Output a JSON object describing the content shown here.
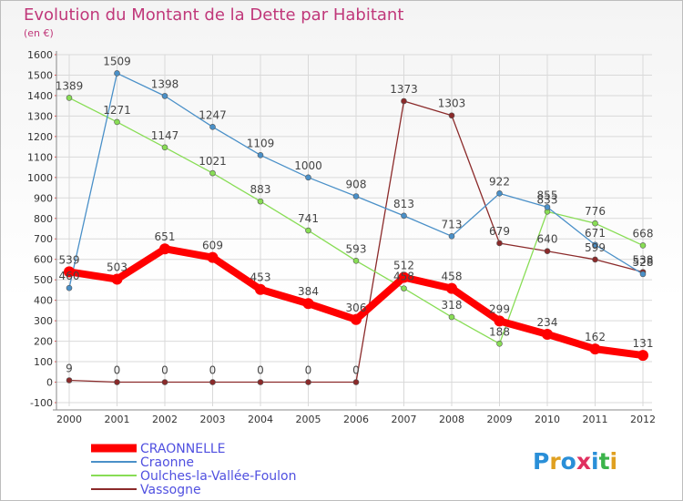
{
  "title": "Evolution du Montant de la Dette par Habitant",
  "subtitle": "(en €)",
  "logo_text": "Proxiti",
  "colors": {
    "title": "#c0387a",
    "axis": "#888888",
    "grid": "#d9d9d9",
    "tick_text": "#333333",
    "legend_text": "#5050e0",
    "value_text": "#444444"
  },
  "chart_data": {
    "type": "line",
    "x": [
      "2000",
      "2001",
      "2002",
      "2003",
      "2004",
      "2005",
      "2006",
      "2007",
      "2008",
      "2009",
      "2010",
      "2011",
      "2012"
    ],
    "ylim": [
      -100,
      1600
    ],
    "yticks": [
      -100,
      0,
      100,
      200,
      300,
      400,
      500,
      600,
      700,
      800,
      900,
      1000,
      1100,
      1200,
      1300,
      1400,
      1500,
      1600
    ],
    "grid": true,
    "legend_position": "bottom-left",
    "series": [
      {
        "name": "CRAONNELLE",
        "color": "#ff0000",
        "values": [
          539,
          503,
          651,
          609,
          453,
          384,
          306,
          512,
          458,
          299,
          234,
          162,
          131
        ],
        "labels": [
          "539",
          "503",
          "651",
          "609",
          "453",
          "384",
          "306",
          "512",
          "458",
          "299",
          "234",
          "162",
          "131"
        ]
      },
      {
        "name": "Craonne",
        "color": "#4a90c8",
        "values": [
          460,
          1509,
          1398,
          1247,
          1109,
          1000,
          908,
          813,
          713,
          922,
          855,
          671,
          528
        ],
        "labels": [
          "460",
          "1509",
          "1398",
          "1247",
          "1109",
          "1000",
          "908",
          "813",
          "713",
          "922",
          "855",
          "671",
          "528"
        ]
      },
      {
        "name": "Oulches-la-Vallée-Foulon",
        "color": "#88dd55",
        "values": [
          1389,
          1271,
          1147,
          1021,
          883,
          741,
          593,
          458,
          318,
          188,
          833,
          776,
          668
        ],
        "labels": [
          "1389",
          "1271",
          "1147",
          "1021",
          "883",
          "741",
          "593",
          "458",
          "318",
          "188",
          "833",
          "776",
          "668"
        ]
      },
      {
        "name": "Vassogne",
        "color": "#8b2a2a",
        "values": [
          9,
          0,
          0,
          0,
          0,
          0,
          0,
          1373,
          1303,
          679,
          640,
          599,
          538
        ],
        "labels": [
          "9",
          "0",
          "0",
          "0",
          "0",
          "0",
          "0",
          "1373",
          "1303",
          "679",
          "640",
          "599",
          "538"
        ]
      }
    ]
  }
}
